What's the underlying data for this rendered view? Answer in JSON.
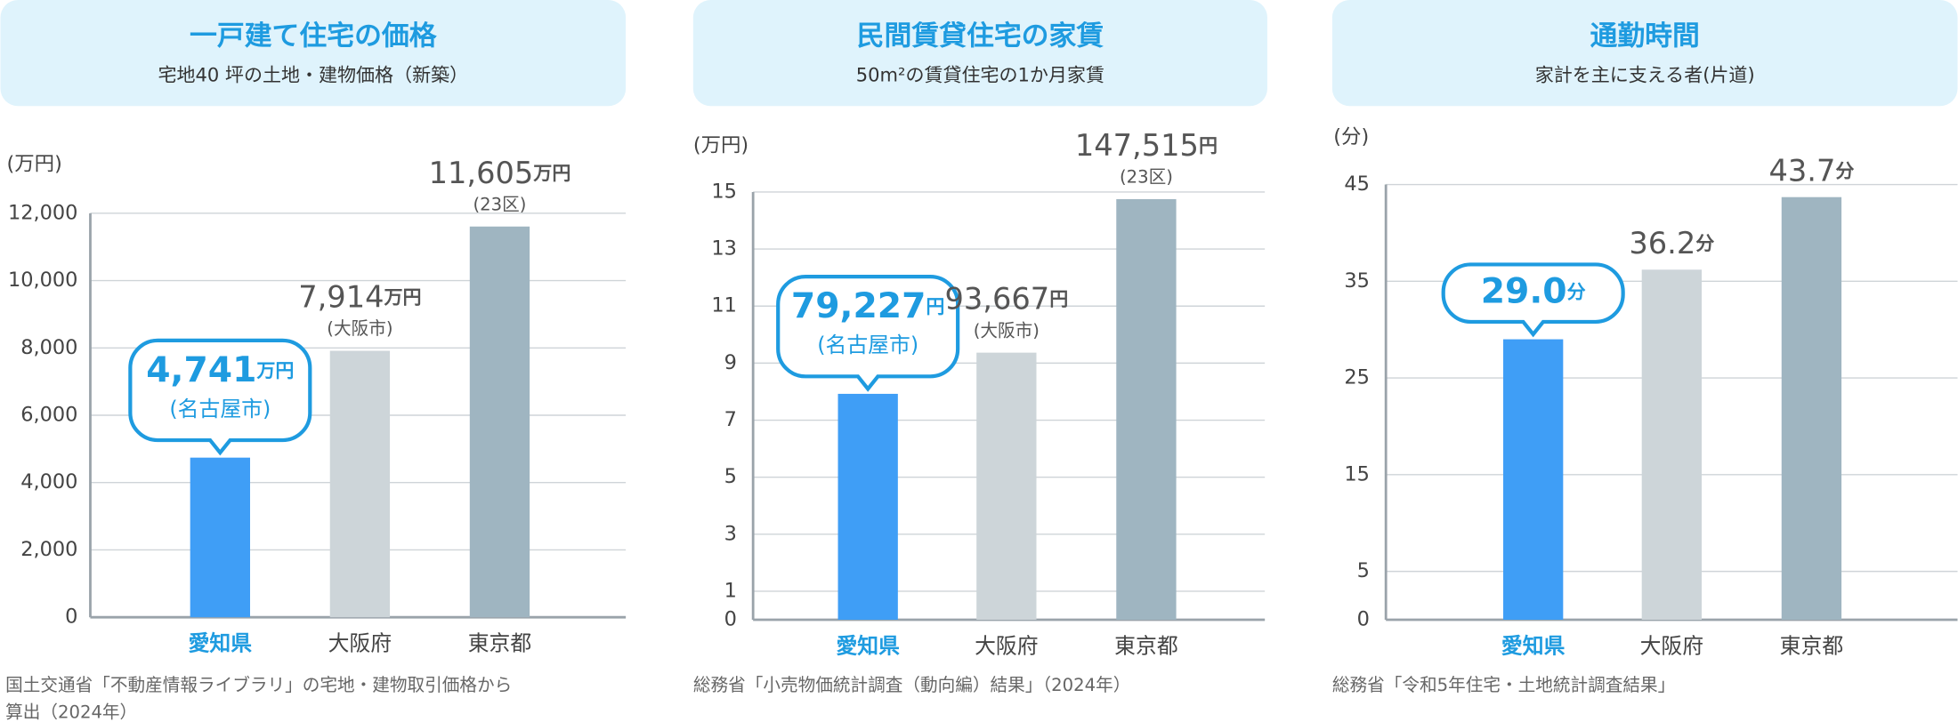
{
  "chart_data": [
    {
      "type": "bar",
      "title": "一戸建て住宅の価格",
      "subtitle": "宅地40 坪の土地・建物価格（新築）",
      "y_label": "(万円)",
      "categories": [
        "愛知県",
        "大阪府",
        "東京都"
      ],
      "values": [
        4741,
        7914,
        11605
      ],
      "value_labels": [
        "4,741",
        "7,914",
        "11,605"
      ],
      "value_unit": "万円",
      "notes": [
        "(名古屋市)",
        "(大阪市)",
        "(23区)"
      ],
      "colors": [
        "#3f9ef6",
        "#cdd5d9",
        "#9fb5c1"
      ],
      "highlight_color": "#1e9be0",
      "ylim": [
        0,
        12000
      ],
      "yticks": [
        0,
        {
          "value": 2000,
          "label": "2,000"
        },
        {
          "value": 4000,
          "label": "4,000"
        },
        {
          "value": 6000,
          "label": "6,000"
        },
        {
          "value": 8000,
          "label": "8,000"
        },
        {
          "value": 10000,
          "label": "10,000"
        },
        {
          "value": 12000,
          "label": "12,000"
        }
      ],
      "grid": true,
      "source": [
        "国土交通省「不動産情報ライブラリ」の宅地・建物取引価格から",
        "算出（2024年）"
      ]
    },
    {
      "type": "bar",
      "title": "民間賃貸住宅の家賃",
      "subtitle": "50m²の賃貸住宅の1か月家賃",
      "y_label": "(万円)",
      "categories": [
        "愛知県",
        "大阪府",
        "東京都"
      ],
      "values": [
        7.9227,
        9.3667,
        14.7515
      ],
      "value_labels": [
        "79,227",
        "93,667",
        "147,515"
      ],
      "value_unit": "円",
      "notes": [
        "(名古屋市)",
        "(大阪市)",
        "(23区)"
      ],
      "colors": [
        "#3f9ef6",
        "#cdd5d9",
        "#9fb5c1"
      ],
      "highlight_color": "#1e9be0",
      "ylim": [
        0,
        15
      ],
      "yticks": [
        0,
        1,
        3,
        5,
        7,
        9,
        11,
        13,
        15
      ],
      "grid": true,
      "source": [
        "総務省「小売物価統計調査（動向編）結果」（2024年）"
      ]
    },
    {
      "type": "bar",
      "title": "通勤時間",
      "subtitle": "家計を主に支える者(片道)",
      "y_label": "(分)",
      "categories": [
        "愛知県",
        "大阪府",
        "東京都"
      ],
      "values": [
        29.0,
        36.2,
        43.7
      ],
      "value_labels": [
        "29.0",
        "36.2",
        "43.7"
      ],
      "value_unit": "分",
      "colors": [
        "#3f9ef6",
        "#cdd5d9",
        "#9fb5c1"
      ],
      "highlight_color": "#1e9be0",
      "ylim": [
        0,
        45
      ],
      "yticks": [
        0,
        5,
        15,
        25,
        35,
        45
      ],
      "grid": true,
      "source": [
        "総務省「令和5年住宅・土地統計調査結果」"
      ]
    }
  ]
}
